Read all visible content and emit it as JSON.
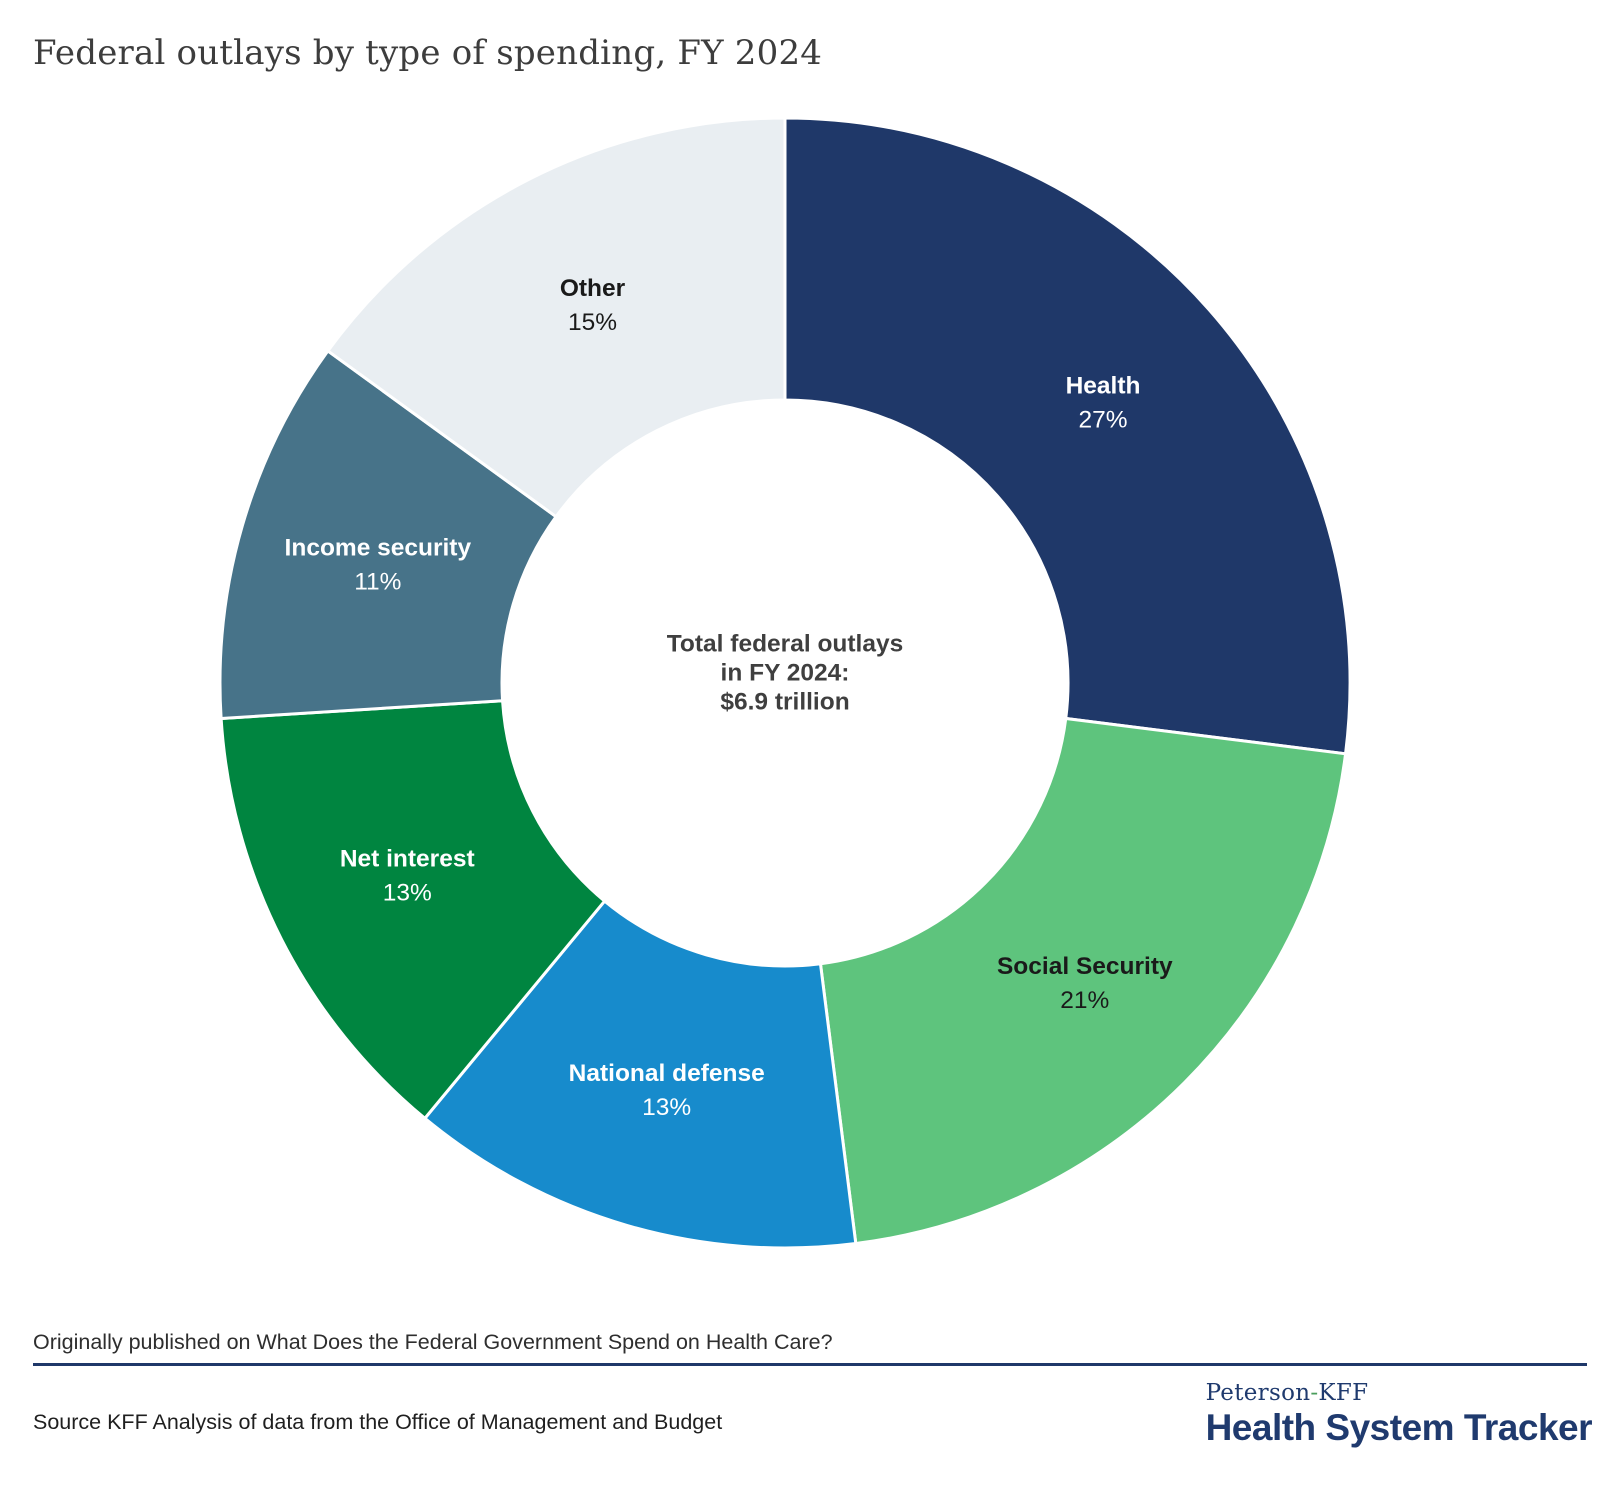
{
  "title": "Federal outlays by type of spending, FY 2024",
  "chart_data": {
    "type": "pie",
    "subtype": "donut",
    "title": "Federal outlays by type of spending, FY 2024",
    "direction": "clockwise",
    "start_angle_deg": 0,
    "separator_color": "#ffffff",
    "center_label": {
      "lines": [
        "Total federal outlays",
        "in FY 2024:",
        "$6.9 trillion"
      ],
      "text_color": "#3f3f3f"
    },
    "segments": [
      {
        "label": "Health",
        "value": 27,
        "display": "27%",
        "color": "#1f3869",
        "text_color": "#ffffff"
      },
      {
        "label": "Social Security",
        "value": 21,
        "display": "21%",
        "color": "#5ec47d",
        "text_color": "#1a1a1a"
      },
      {
        "label": "National defense",
        "value": 13,
        "display": "13%",
        "color": "#178bcc",
        "text_color": "#ffffff"
      },
      {
        "label": "Net interest",
        "value": 13,
        "display": "13%",
        "color": "#008540",
        "text_color": "#ffffff"
      },
      {
        "label": "Income security",
        "value": 11,
        "display": "11%",
        "color": "#477389",
        "text_color": "#ffffff"
      },
      {
        "label": "Other",
        "value": 15,
        "display": "15%",
        "color": "#e9eef2",
        "text_color": "#1a1a1a"
      }
    ]
  },
  "footer": {
    "published_line": "Originally published on What Does the Federal Government Spend on Health Care?",
    "source_line": "Source KFF Analysis of data from the Office of Management and Budget",
    "logo": {
      "brand_prefix": "Peterson",
      "hyphen": "-",
      "brand_suffix": "KFF",
      "name": "Health System Tracker"
    }
  },
  "colors": {
    "divider": "#1f3869",
    "logo_navy": "#1f3a6e",
    "logo_hyphen_green": "#4a9d5c",
    "title_text": "#3d3d3d",
    "footer_text": "#2e2e2e"
  }
}
